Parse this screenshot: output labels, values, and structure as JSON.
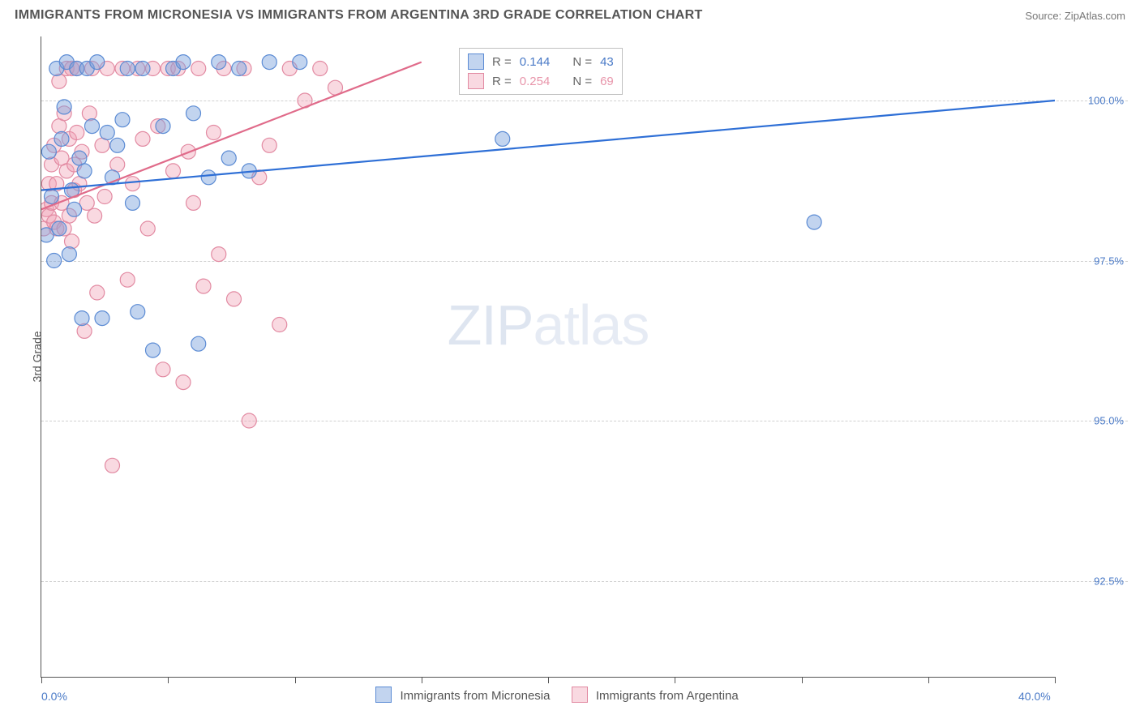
{
  "title": "IMMIGRANTS FROM MICRONESIA VS IMMIGRANTS FROM ARGENTINA 3RD GRADE CORRELATION CHART",
  "source_label": "Source:",
  "source_name": "ZipAtlas.com",
  "y_axis_title": "3rd Grade",
  "watermark_a": "ZIP",
  "watermark_b": "atlas",
  "chart": {
    "type": "scatter",
    "xlim": [
      0,
      40
    ],
    "ylim": [
      91,
      101
    ],
    "x_ticks": [
      0,
      5,
      10,
      15,
      20,
      25,
      30,
      35,
      40
    ],
    "x_labels": [
      {
        "x": 0,
        "t": "0.0%"
      },
      {
        "x": 40,
        "t": "40.0%"
      }
    ],
    "y_grid": [
      {
        "y": 92.5,
        "t": "92.5%"
      },
      {
        "y": 95.0,
        "t": "95.0%"
      },
      {
        "y": 97.5,
        "t": "97.5%"
      },
      {
        "y": 100.0,
        "t": "100.0%"
      }
    ],
    "colors": {
      "blue_fill": "rgba(120,160,220,0.45)",
      "blue_stroke": "#5b8bd4",
      "pink_fill": "rgba(240,160,180,0.40)",
      "pink_stroke": "#e28aa2",
      "blue_line": "#2e6fd6",
      "pink_line": "#e06b8a",
      "grid": "#d0d0d0",
      "axis": "#555555",
      "label": "#4a7ac7"
    },
    "marker_radius": 9,
    "series_blue": {
      "name": "Immigrants from Micronesia",
      "r": 0.144,
      "n": 43,
      "trend": {
        "x1": 0,
        "y1": 98.6,
        "x2": 40,
        "y2": 100.0
      },
      "points": [
        [
          0.2,
          97.9
        ],
        [
          0.3,
          99.2
        ],
        [
          0.4,
          98.5
        ],
        [
          0.5,
          97.5
        ],
        [
          0.6,
          100.5
        ],
        [
          0.7,
          98.0
        ],
        [
          0.8,
          99.4
        ],
        [
          0.9,
          99.9
        ],
        [
          1.0,
          100.6
        ],
        [
          1.1,
          97.6
        ],
        [
          1.2,
          98.6
        ],
        [
          1.3,
          98.3
        ],
        [
          1.4,
          100.5
        ],
        [
          1.5,
          99.1
        ],
        [
          1.6,
          96.6
        ],
        [
          1.7,
          98.9
        ],
        [
          1.8,
          100.5
        ],
        [
          2.0,
          99.6
        ],
        [
          2.2,
          100.6
        ],
        [
          2.4,
          96.6
        ],
        [
          2.6,
          99.5
        ],
        [
          2.8,
          98.8
        ],
        [
          3.0,
          99.3
        ],
        [
          3.2,
          99.7
        ],
        [
          3.4,
          100.5
        ],
        [
          3.6,
          98.4
        ],
        [
          3.8,
          96.7
        ],
        [
          4.0,
          100.5
        ],
        [
          4.4,
          96.1
        ],
        [
          4.8,
          99.6
        ],
        [
          5.2,
          100.5
        ],
        [
          5.6,
          100.6
        ],
        [
          6.0,
          99.8
        ],
        [
          6.2,
          96.2
        ],
        [
          6.6,
          98.8
        ],
        [
          7.0,
          100.6
        ],
        [
          7.4,
          99.1
        ],
        [
          7.8,
          100.5
        ],
        [
          8.2,
          98.9
        ],
        [
          9.0,
          100.6
        ],
        [
          10.2,
          100.6
        ],
        [
          18.2,
          99.4
        ],
        [
          30.5,
          98.1
        ]
      ]
    },
    "series_pink": {
      "name": "Immigrants from Argentina",
      "r": 0.254,
      "n": 69,
      "trend": {
        "x1": 0,
        "y1": 98.3,
        "x2": 15,
        "y2": 100.6
      },
      "points": [
        [
          0.1,
          98.0
        ],
        [
          0.2,
          98.3
        ],
        [
          0.3,
          98.2
        ],
        [
          0.3,
          98.7
        ],
        [
          0.4,
          99.0
        ],
        [
          0.4,
          98.4
        ],
        [
          0.5,
          98.1
        ],
        [
          0.5,
          99.3
        ],
        [
          0.6,
          98.0
        ],
        [
          0.6,
          98.7
        ],
        [
          0.7,
          99.6
        ],
        [
          0.7,
          100.3
        ],
        [
          0.8,
          98.4
        ],
        [
          0.8,
          99.1
        ],
        [
          0.9,
          98.0
        ],
        [
          0.9,
          99.8
        ],
        [
          1.0,
          98.9
        ],
        [
          1.0,
          100.5
        ],
        [
          1.1,
          99.4
        ],
        [
          1.1,
          98.2
        ],
        [
          1.2,
          97.8
        ],
        [
          1.2,
          100.5
        ],
        [
          1.3,
          99.0
        ],
        [
          1.3,
          98.6
        ],
        [
          1.4,
          99.5
        ],
        [
          1.4,
          100.5
        ],
        [
          1.5,
          98.7
        ],
        [
          1.6,
          99.2
        ],
        [
          1.7,
          96.4
        ],
        [
          1.8,
          98.4
        ],
        [
          1.9,
          99.8
        ],
        [
          2.0,
          100.5
        ],
        [
          2.1,
          98.2
        ],
        [
          2.2,
          97.0
        ],
        [
          2.4,
          99.3
        ],
        [
          2.5,
          98.5
        ],
        [
          2.6,
          100.5
        ],
        [
          2.8,
          94.3
        ],
        [
          3.0,
          99.0
        ],
        [
          3.2,
          100.5
        ],
        [
          3.4,
          97.2
        ],
        [
          3.6,
          98.7
        ],
        [
          3.8,
          100.5
        ],
        [
          4.0,
          99.4
        ],
        [
          4.2,
          98.0
        ],
        [
          4.4,
          100.5
        ],
        [
          4.6,
          99.6
        ],
        [
          4.8,
          95.8
        ],
        [
          5.0,
          100.5
        ],
        [
          5.2,
          98.9
        ],
        [
          5.4,
          100.5
        ],
        [
          5.6,
          95.6
        ],
        [
          5.8,
          99.2
        ],
        [
          6.0,
          98.4
        ],
        [
          6.2,
          100.5
        ],
        [
          6.4,
          97.1
        ],
        [
          6.8,
          99.5
        ],
        [
          7.0,
          97.6
        ],
        [
          7.2,
          100.5
        ],
        [
          7.6,
          96.9
        ],
        [
          8.0,
          100.5
        ],
        [
          8.2,
          95.0
        ],
        [
          8.6,
          98.8
        ],
        [
          9.0,
          99.3
        ],
        [
          9.4,
          96.5
        ],
        [
          9.8,
          100.5
        ],
        [
          10.4,
          100.0
        ],
        [
          11.0,
          100.5
        ],
        [
          11.6,
          100.2
        ]
      ]
    }
  },
  "statbox": {
    "r_label": "R =",
    "n_label": "N ="
  },
  "legend": {
    "blue": "Immigrants from Micronesia",
    "pink": "Immigrants from Argentina"
  }
}
